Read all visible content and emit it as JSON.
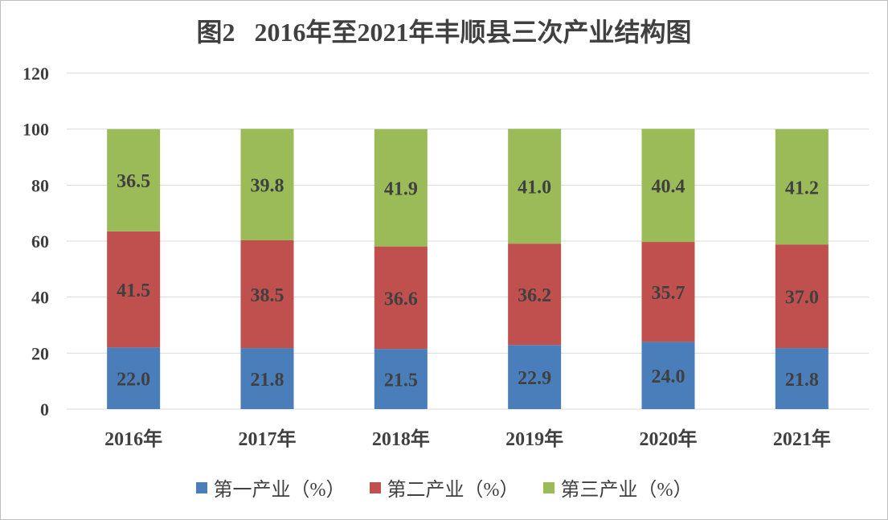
{
  "chart_data": {
    "type": "bar",
    "stacked": true,
    "title": "图2   2016年至2021年丰顺县三次产业结构图",
    "xlabel": "",
    "ylabel": "",
    "ylim": [
      0,
      120
    ],
    "yticks": [
      "0",
      "20",
      "40",
      "60",
      "80",
      "100",
      "120"
    ],
    "grid": true,
    "legend_position": "bottom",
    "categories": [
      "2016年",
      "2017年",
      "2018年",
      "2019年",
      "2020年",
      "2021年"
    ],
    "series": [
      {
        "name": "第一产业（%）",
        "color": "#4a7ebb",
        "values": [
          22.0,
          21.8,
          21.5,
          22.9,
          24.0,
          21.8
        ],
        "labels": [
          "22.0",
          "21.8",
          "21.5",
          "22.9",
          "24.0",
          "21.8"
        ]
      },
      {
        "name": "第二产业（%）",
        "color": "#c0504d",
        "values": [
          41.5,
          38.5,
          36.6,
          36.2,
          35.7,
          37.0
        ],
        "labels": [
          "41.5",
          "38.5",
          "36.6",
          "36.2",
          "35.7",
          "37.0"
        ]
      },
      {
        "name": "第三产业（%）",
        "color": "#9bbb59",
        "values": [
          36.5,
          39.8,
          41.9,
          41.0,
          40.4,
          41.2
        ],
        "labels": [
          "36.5",
          "39.8",
          "41.9",
          "41.0",
          "40.4",
          "41.2"
        ]
      }
    ]
  }
}
